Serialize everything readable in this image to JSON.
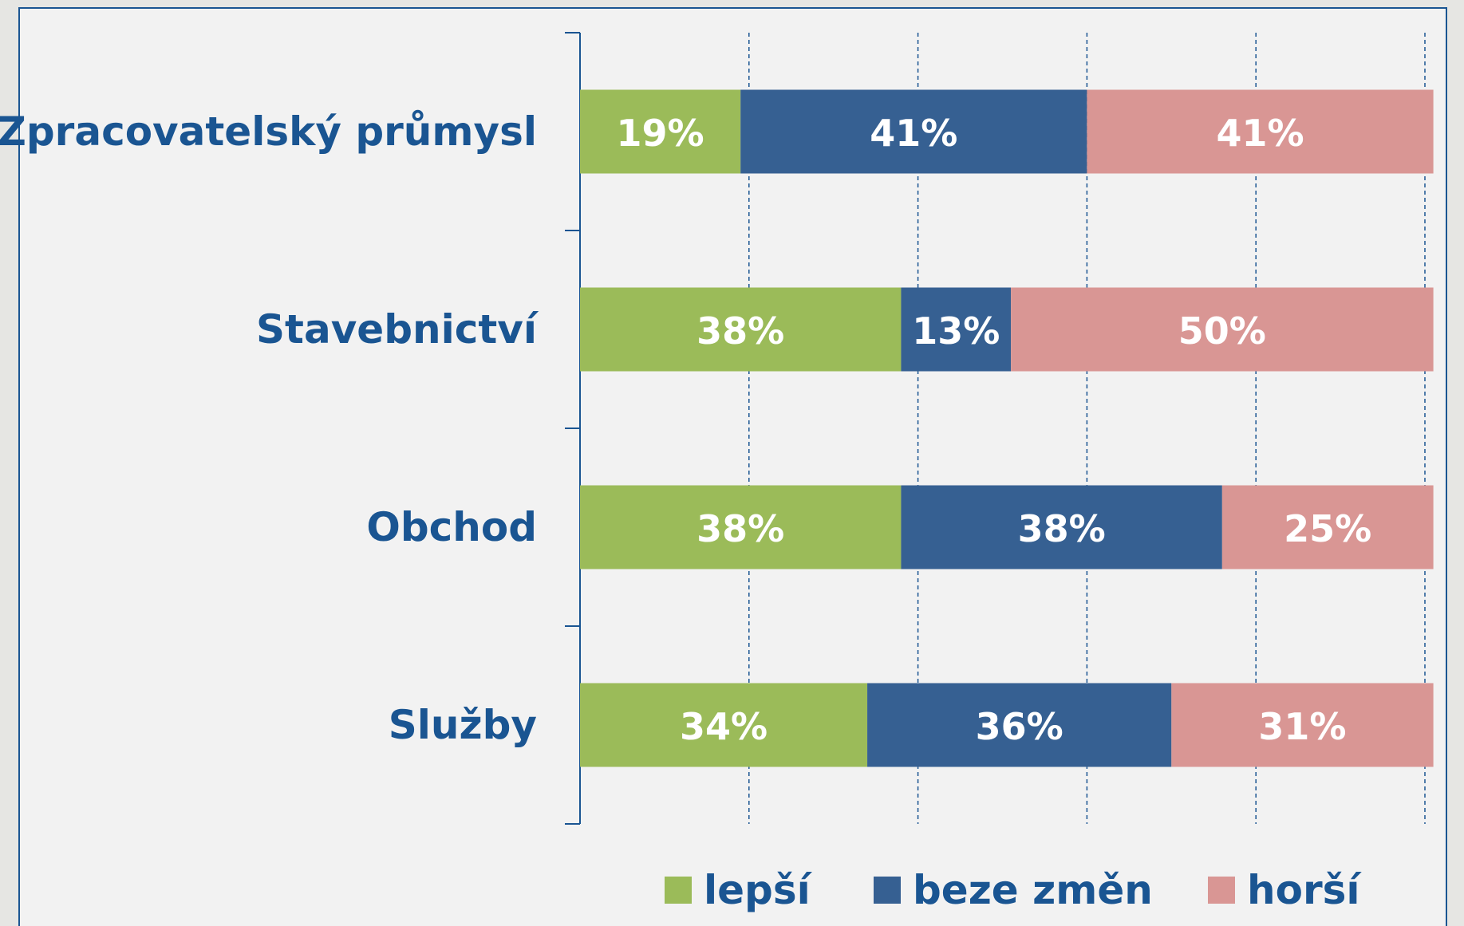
{
  "chart_data": {
    "type": "stacked-bar-horizontal",
    "categories": [
      "Zpracovatelský průmysl",
      "Stavebnictví",
      "Obchod",
      "Služby"
    ],
    "series": [
      {
        "name": "lepší",
        "color": "#9bbb59",
        "values": [
          19,
          38,
          38,
          34
        ],
        "value_labels": [
          "19%",
          "38%",
          "38%",
          "34%"
        ]
      },
      {
        "name": "beze změn",
        "color": "#366092",
        "values": [
          41,
          13,
          38,
          36
        ],
        "value_labels": [
          "41%",
          "13%",
          "38%",
          "36%"
        ]
      },
      {
        "name": "horší",
        "color": "#d99694",
        "values": [
          41,
          50,
          25,
          31
        ],
        "value_labels": [
          "41%",
          "50%",
          "25%",
          "31%"
        ]
      }
    ],
    "xlim": [
      0,
      100
    ],
    "xticks": [
      20,
      40,
      60,
      80,
      100
    ],
    "grid": true,
    "legend": "bottom"
  }
}
